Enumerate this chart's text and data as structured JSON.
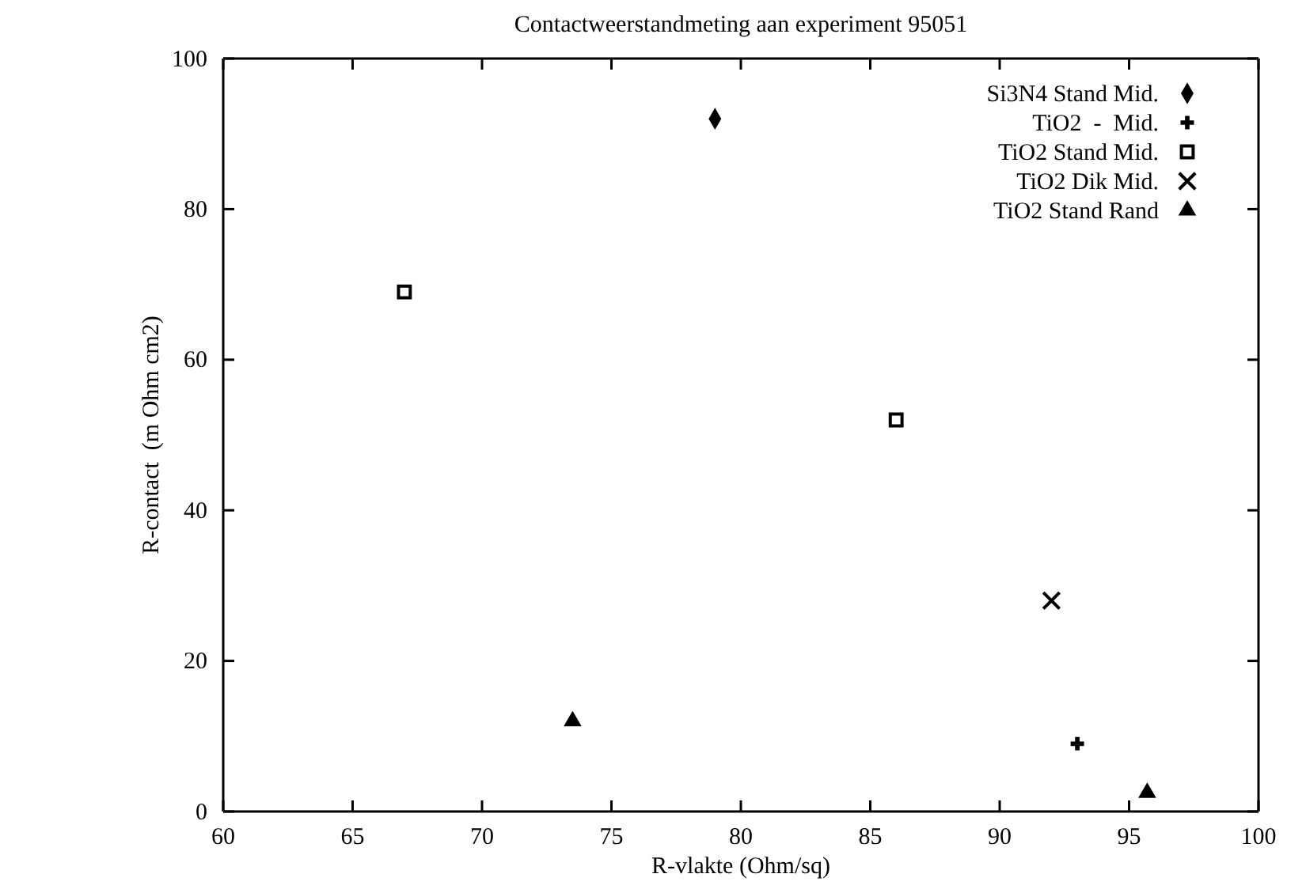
{
  "chart_data": {
    "type": "scatter",
    "title": "Contactweerstandmeting aan experiment 95051",
    "xlabel": "R-vlakte (Ohm/sq)",
    "ylabel": "R-contact  (m Ohm cm2)",
    "xlim": [
      60,
      100
    ],
    "xticks": [
      60,
      65,
      70,
      75,
      80,
      85,
      90,
      95,
      100
    ],
    "ylim": [
      0,
      100
    ],
    "yticks": [
      0,
      20,
      40,
      60,
      80,
      100
    ],
    "grid": false,
    "legend": "top right",
    "series": [
      {
        "name": "Si3N4 Stand Mid.",
        "color": "#000000",
        "marker": "diamond",
        "x": [
          79
        ],
        "values": [
          92
        ]
      },
      {
        "name": "TiO2  -  Mid.",
        "color": "#000000",
        "marker": "cross",
        "x": [
          93
        ],
        "values": [
          9
        ]
      },
      {
        "name": "TiO2 Stand Mid.",
        "color": "#000000",
        "marker": "square",
        "x": [
          67,
          86
        ],
        "values": [
          69,
          52
        ]
      },
      {
        "name": "TiO2 Dik Mid.",
        "color": "#000000",
        "marker": "x",
        "x": [
          92
        ],
        "values": [
          28
        ]
      },
      {
        "name": "TiO2 Stand Rand",
        "color": "#000000",
        "marker": "triangle",
        "x": [
          73.5,
          95.7
        ],
        "values": [
          12,
          2.5
        ]
      }
    ]
  }
}
